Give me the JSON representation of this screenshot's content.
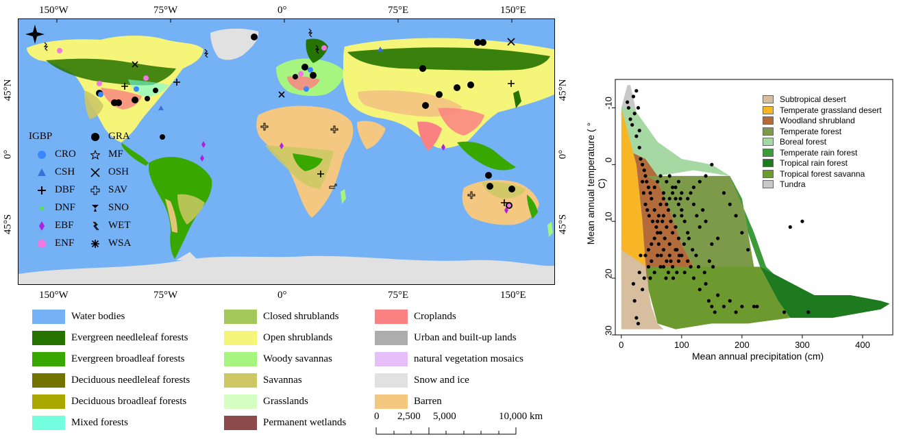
{
  "map": {
    "top_ticks": [
      "150°W",
      "75°W",
      "0°",
      "75°E",
      "150°E"
    ],
    "bottom_ticks": [
      "150°W",
      "75°W",
      "0°",
      "75°E",
      "150°E"
    ],
    "left_ticks": [
      "45°N",
      "0°",
      "45°S"
    ],
    "right_ticks": [
      "45°N",
      "0°",
      "45°S"
    ],
    "compass_label": "N",
    "igbp_legend": {
      "title": "IGBP",
      "items": [
        {
          "code": "CRO",
          "symbol": "circle",
          "color": "#3a86ff"
        },
        {
          "code": "CSH",
          "symbol": "triangle",
          "color": "#3a6fd8"
        },
        {
          "code": "DBF",
          "symbol": "plus",
          "color": "#000000"
        },
        {
          "code": "DNF",
          "symbol": "dot",
          "color": "#55dd55"
        },
        {
          "code": "EBF",
          "symbol": "diamond",
          "color": "#b020e0"
        },
        {
          "code": "ENF",
          "symbol": "circle",
          "color": "#f078e0"
        },
        {
          "code": "GRA",
          "symbol": "circle",
          "color": "#000000"
        },
        {
          "code": "MF",
          "symbol": "star-outline",
          "color": "#000000"
        },
        {
          "code": "OSH",
          "symbol": "x",
          "color": "#000000"
        },
        {
          "code": "SAV",
          "symbol": "cross-outline",
          "color": "#000000"
        },
        {
          "code": "SNO",
          "symbol": "bowtie",
          "color": "#000000"
        },
        {
          "code": "WET",
          "symbol": "bolt",
          "color": "#000000"
        },
        {
          "code": "WSA",
          "symbol": "asterisk",
          "color": "#000000"
        }
      ]
    },
    "landcover_legend": [
      {
        "label": "Water bodies",
        "color": "#74b1f5"
      },
      {
        "label": "Evergreen needleleaf forests",
        "color": "#267300"
      },
      {
        "label": "Evergreen broadleaf forests",
        "color": "#38a800"
      },
      {
        "label": "Deciduous needleleaf forests",
        "color": "#737300"
      },
      {
        "label": "Deciduous broadleaf forests",
        "color": "#a8a800"
      },
      {
        "label": "Mixed forests",
        "color": "#73ffdf"
      },
      {
        "label": "Closed shrublands",
        "color": "#a5c85a"
      },
      {
        "label": "Open shrublands",
        "color": "#f5f57a"
      },
      {
        "label": "Woody savannas",
        "color": "#a6f580"
      },
      {
        "label": "Savannas",
        "color": "#cdc864"
      },
      {
        "label": "Grasslands",
        "color": "#d6ffc4"
      },
      {
        "label": "Permanent wetlands",
        "color": "#8c4a4a"
      },
      {
        "label": "Croplands",
        "color": "#fa8282"
      },
      {
        "label": "Urban and built-up lands",
        "color": "#adadad"
      },
      {
        "label": "natural vegetation mosaics",
        "color": "#e5befa"
      },
      {
        "label": "Snow and ice",
        "color": "#e1e1e1"
      },
      {
        "label": "Barren",
        "color": "#f5c882"
      }
    ],
    "scale_bar": {
      "labels": [
        "0",
        "2,500",
        "5,000",
        "10,000 km"
      ]
    }
  },
  "chart_data": {
    "type": "scatter",
    "title": "",
    "xlabel": "Mean annual precipitation (cm)",
    "ylabel": "Mean annual temperature ( ° C)",
    "xlim": [
      -10,
      450
    ],
    "ylim": [
      30,
      -15
    ],
    "x_ticks": [
      "0",
      "100",
      "200",
      "300",
      "400"
    ],
    "y_ticks": [
      "-10",
      "0",
      "10",
      "20",
      "30"
    ],
    "legend_placement": "top-right",
    "biomes": [
      {
        "name": "Subtropical desert",
        "color": "#d7be9f"
      },
      {
        "name": "Temperate grassland desert",
        "color": "#f8b526"
      },
      {
        "name": "Woodland shrubland",
        "color": "#b46b3c"
      },
      {
        "name": "Temperate forest",
        "color": "#7c9a4a"
      },
      {
        "name": "Boreal forest",
        "color": "#a5d8a2"
      },
      {
        "name": "Temperate rain forest",
        "color": "#3d9a3a"
      },
      {
        "name": "Tropical rain forest",
        "color": "#1e7a1e"
      },
      {
        "name": "Tropical forest savanna",
        "color": "#6d9a2f"
      },
      {
        "name": "Tundra",
        "color": "#c8c8c8"
      }
    ],
    "points": [
      [
        10,
        -11
      ],
      [
        12,
        -10
      ],
      [
        15,
        -8
      ],
      [
        18,
        -7
      ],
      [
        20,
        -12
      ],
      [
        22,
        -9
      ],
      [
        25,
        -13
      ],
      [
        28,
        -10
      ],
      [
        30,
        -6
      ],
      [
        25,
        -5
      ],
      [
        30,
        -3
      ],
      [
        32,
        -1
      ],
      [
        35,
        0
      ],
      [
        38,
        1
      ],
      [
        40,
        2
      ],
      [
        42,
        3
      ],
      [
        45,
        4
      ],
      [
        48,
        5
      ],
      [
        50,
        6
      ],
      [
        35,
        3
      ],
      [
        37,
        5
      ],
      [
        40,
        7
      ],
      [
        43,
        8
      ],
      [
        46,
        9
      ],
      [
        52,
        10
      ],
      [
        55,
        8
      ],
      [
        58,
        11
      ],
      [
        60,
        12
      ],
      [
        62,
        9
      ],
      [
        65,
        7
      ],
      [
        68,
        10
      ],
      [
        70,
        6
      ],
      [
        72,
        13
      ],
      [
        75,
        11
      ],
      [
        78,
        8
      ],
      [
        80,
        14
      ],
      [
        82,
        10
      ],
      [
        85,
        12
      ],
      [
        88,
        9
      ],
      [
        90,
        11
      ],
      [
        92,
        15
      ],
      [
        95,
        13
      ],
      [
        98,
        6
      ],
      [
        100,
        8
      ],
      [
        105,
        10
      ],
      [
        110,
        12
      ],
      [
        115,
        5
      ],
      [
        120,
        7
      ],
      [
        125,
        9
      ],
      [
        130,
        11
      ],
      [
        135,
        8
      ],
      [
        140,
        10
      ],
      [
        150,
        14
      ],
      [
        160,
        13
      ],
      [
        170,
        5
      ],
      [
        180,
        7
      ],
      [
        190,
        9
      ],
      [
        200,
        12
      ],
      [
        210,
        15
      ],
      [
        40,
        16
      ],
      [
        45,
        18
      ],
      [
        48,
        20
      ],
      [
        50,
        17
      ],
      [
        55,
        19
      ],
      [
        60,
        16
      ],
      [
        65,
        18
      ],
      [
        70,
        15
      ],
      [
        75,
        17
      ],
      [
        80,
        16
      ],
      [
        85,
        18
      ],
      [
        90,
        15
      ],
      [
        95,
        17
      ],
      [
        100,
        16
      ],
      [
        105,
        19
      ],
      [
        110,
        17
      ],
      [
        115,
        18
      ],
      [
        120,
        20
      ],
      [
        130,
        22
      ],
      [
        140,
        21
      ],
      [
        145,
        24
      ],
      [
        150,
        25
      ],
      [
        155,
        26
      ],
      [
        160,
        23
      ],
      [
        170,
        25
      ],
      [
        180,
        24
      ],
      [
        190,
        26
      ],
      [
        200,
        25
      ],
      [
        220,
        25
      ],
      [
        225,
        25
      ],
      [
        270,
        26
      ],
      [
        310,
        26
      ],
      [
        280,
        11
      ],
      [
        300,
        10
      ],
      [
        20,
        21
      ],
      [
        22,
        24
      ],
      [
        25,
        27
      ],
      [
        28,
        28
      ],
      [
        30,
        19
      ],
      [
        32,
        16
      ],
      [
        35,
        22
      ],
      [
        38,
        20
      ],
      [
        45,
        15
      ],
      [
        50,
        14
      ],
      [
        55,
        13
      ],
      [
        60,
        10
      ],
      [
        65,
        12
      ],
      [
        70,
        9
      ],
      [
        75,
        7
      ],
      [
        80,
        6
      ],
      [
        85,
        5
      ],
      [
        90,
        4
      ],
      [
        95,
        3
      ],
      [
        100,
        5
      ],
      [
        110,
        6
      ],
      [
        120,
        4
      ],
      [
        130,
        3
      ],
      [
        140,
        2
      ],
      [
        150,
        0
      ],
      [
        55,
        4
      ],
      [
        60,
        3
      ],
      [
        65,
        2
      ],
      [
        70,
        5
      ],
      [
        75,
        3
      ],
      [
        80,
        2
      ],
      [
        85,
        4
      ],
      [
        90,
        6
      ],
      [
        95,
        7
      ],
      [
        100,
        9
      ],
      [
        62,
        14
      ],
      [
        66,
        16
      ],
      [
        70,
        18
      ],
      [
        74,
        20
      ],
      [
        78,
        19
      ],
      [
        82,
        17
      ],
      [
        86,
        20
      ],
      [
        92,
        19
      ],
      [
        96,
        16
      ],
      [
        104,
        14
      ],
      [
        112,
        13
      ],
      [
        118,
        15
      ],
      [
        124,
        16
      ],
      [
        128,
        18
      ],
      [
        138,
        19
      ],
      [
        146,
        17
      ],
      [
        152,
        18
      ]
    ]
  }
}
